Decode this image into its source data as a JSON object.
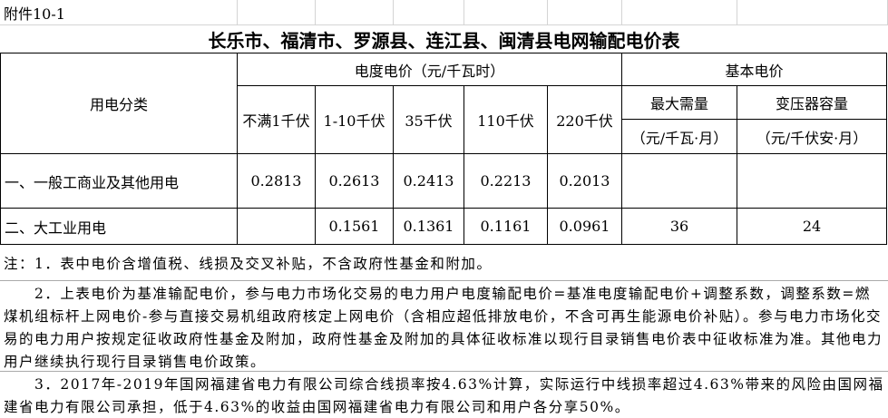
{
  "attachment": "附件10-1",
  "title": "长乐市、福清市、罗源县、连江县、闽清县电网输配电价表",
  "header": {
    "category": "用电分类",
    "energy_price": "电度电价（元/千瓦时）",
    "basic_price": "基本电价",
    "voltages": [
      "不满1千伏",
      "1-10千伏",
      "35千伏",
      "110千伏",
      "220千伏"
    ],
    "max_demand": "最大需量",
    "max_demand_unit": "（元/千瓦·月）",
    "transformer": "变压器容量",
    "transformer_unit": "（元/千伏安·月）"
  },
  "rows": [
    {
      "category": "一、一般工商业及其他用电",
      "prices": [
        "0.2813",
        "0.2613",
        "0.2413",
        "0.2213",
        "0.2013"
      ],
      "max_demand": "",
      "transformer": ""
    },
    {
      "category": "二、大工业用电",
      "prices": [
        "",
        "0.1561",
        "0.1361",
        "0.1161",
        "0.0961"
      ],
      "max_demand": "36",
      "transformer": "24"
    }
  ],
  "notes": [
    "注：1．表中电价含增值税、线损及交叉补贴，不含政府性基金和附加。",
    "　　2．上表电价为基准输配电价，参与电力市场化交易的电力用户电度输配电价=基准电度输配电价+调整系数，调整系数=燃煤机组标杆上网电价-参与直接交易机组政府核定上网电价（含相应超低排放电价，不含可再生能源电价补贴）。参与电力市场化交易的电力用户按规定征收政府性基金及附加，政府性基金及附加的具体征收标准以现行目录销售电价表中征收标准为准。其他电力用户继续执行现行目录销售电价政策。",
    "　　3．2017年-2019年国网福建省电力有限公司综合线损率按4.63%计算，实际运行中线损率超过4.63%带来的风险由国网福建省电力有限公司承担，低于4.63%的收益由国网福建省电力有限公司和用户各分享50%。"
  ]
}
